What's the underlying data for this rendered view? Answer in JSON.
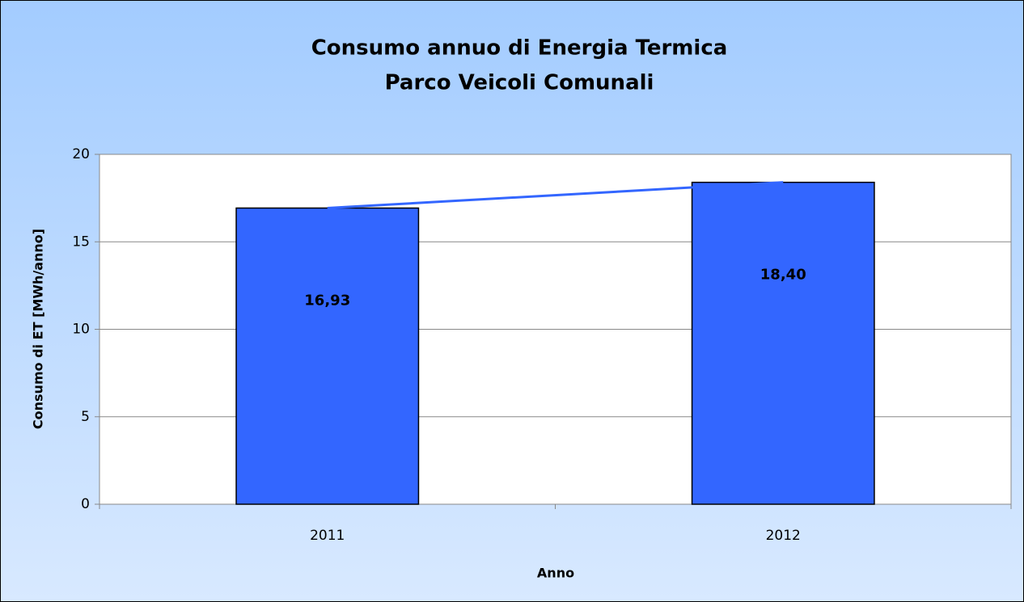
{
  "chart_data": {
    "type": "bar",
    "title": [
      "Consumo annuo di Energia Termica",
      "Parco Veicoli Comunali"
    ],
    "categories": [
      "2011",
      "2012"
    ],
    "values": [
      16.93,
      18.4
    ],
    "value_labels": [
      "16,93",
      "18,40"
    ],
    "color": "#3366ff",
    "connect_line_color": "#3366ff",
    "ylim": [
      0,
      20
    ],
    "yticks": [
      0,
      5,
      10,
      15,
      20
    ],
    "grid": true,
    "xlabel": "Anno",
    "ylabel": "Consumo di ET [MWh/anno]"
  }
}
